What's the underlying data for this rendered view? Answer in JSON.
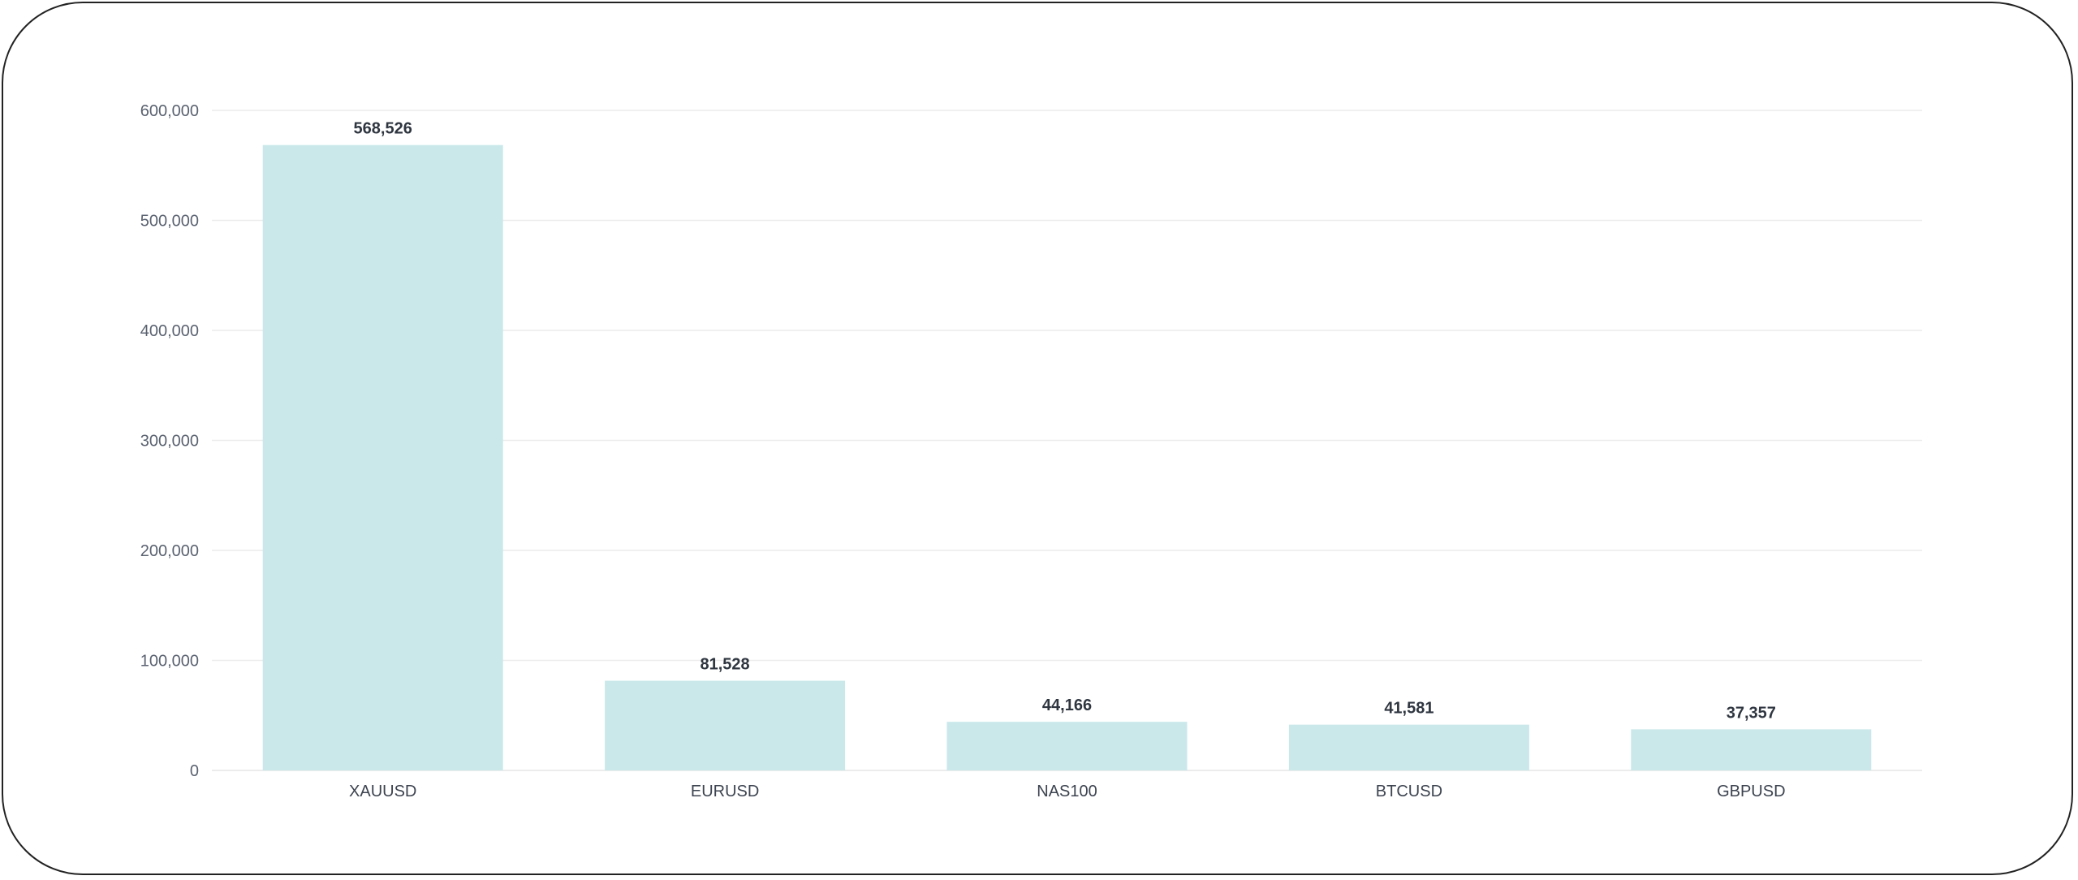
{
  "chart_data": {
    "type": "bar",
    "categories": [
      "XAUUSD",
      "EURUSD",
      "NAS100",
      "BTCUSD",
      "GBPUSD"
    ],
    "values": [
      568526,
      81528,
      44166,
      41581,
      37357
    ],
    "data_labels": [
      "568,526",
      "81,528",
      "44,166",
      "41,581",
      "37,357"
    ],
    "title": "",
    "xlabel": "",
    "ylabel": "",
    "ylim": [
      0,
      600000
    ],
    "yticks": [
      0,
      100000,
      200000,
      300000,
      400000,
      500000,
      600000
    ],
    "ytick_labels": [
      "0",
      "100,000",
      "200,000",
      "300,000",
      "400,000",
      "500,000",
      "600,000"
    ],
    "grid": true,
    "bar_color": "#cae8ea",
    "grid_color": "#ececec"
  }
}
